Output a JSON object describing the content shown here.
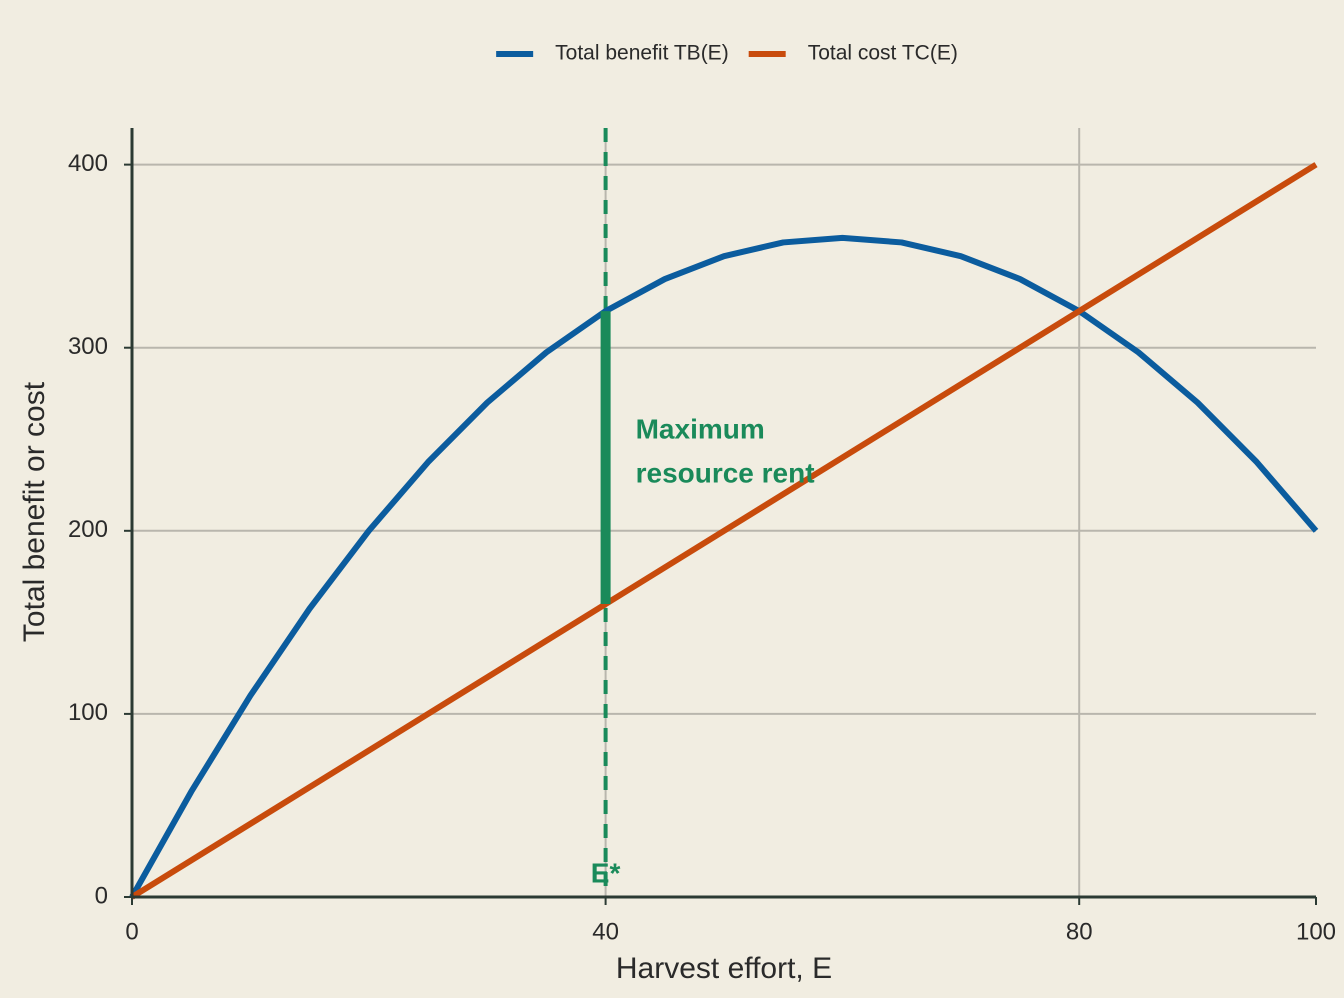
{
  "chart_data": {
    "type": "line",
    "x_label": "Harvest effort, E",
    "y_label": "Total benefit or cost",
    "xlim": [
      0,
      100
    ],
    "ylim": [
      0,
      420
    ],
    "xticks": [
      0,
      40,
      80,
      100
    ],
    "yticks": [
      0,
      100,
      200,
      300,
      400
    ],
    "grid": true,
    "legend": "top",
    "series": [
      {
        "name": "Total benefit  TB(E)",
        "color": "#0b5c9e",
        "x": [
          0,
          5,
          10,
          15,
          20,
          25,
          30,
          35,
          40,
          45,
          50,
          55,
          60,
          65,
          70,
          75,
          80,
          85,
          90,
          95,
          100
        ],
        "values": [
          0,
          57.5,
          110,
          157.5,
          200,
          237.5,
          270,
          297.5,
          320,
          337.5,
          350,
          357.5,
          360,
          357.5,
          350,
          337.5,
          320,
          297.5,
          270,
          237.5,
          200
        ]
      },
      {
        "name": "Total cost  TC(E)",
        "color": "#c84b0c",
        "x": [
          0,
          100
        ],
        "values": [
          0,
          400
        ]
      }
    ],
    "optimum": {
      "x": 40,
      "label": "E*",
      "color": "#1a8a5a",
      "rent_low": 160,
      "rent_high": 320,
      "rent_label": [
        "Maximum",
        "resource rent"
      ]
    }
  }
}
